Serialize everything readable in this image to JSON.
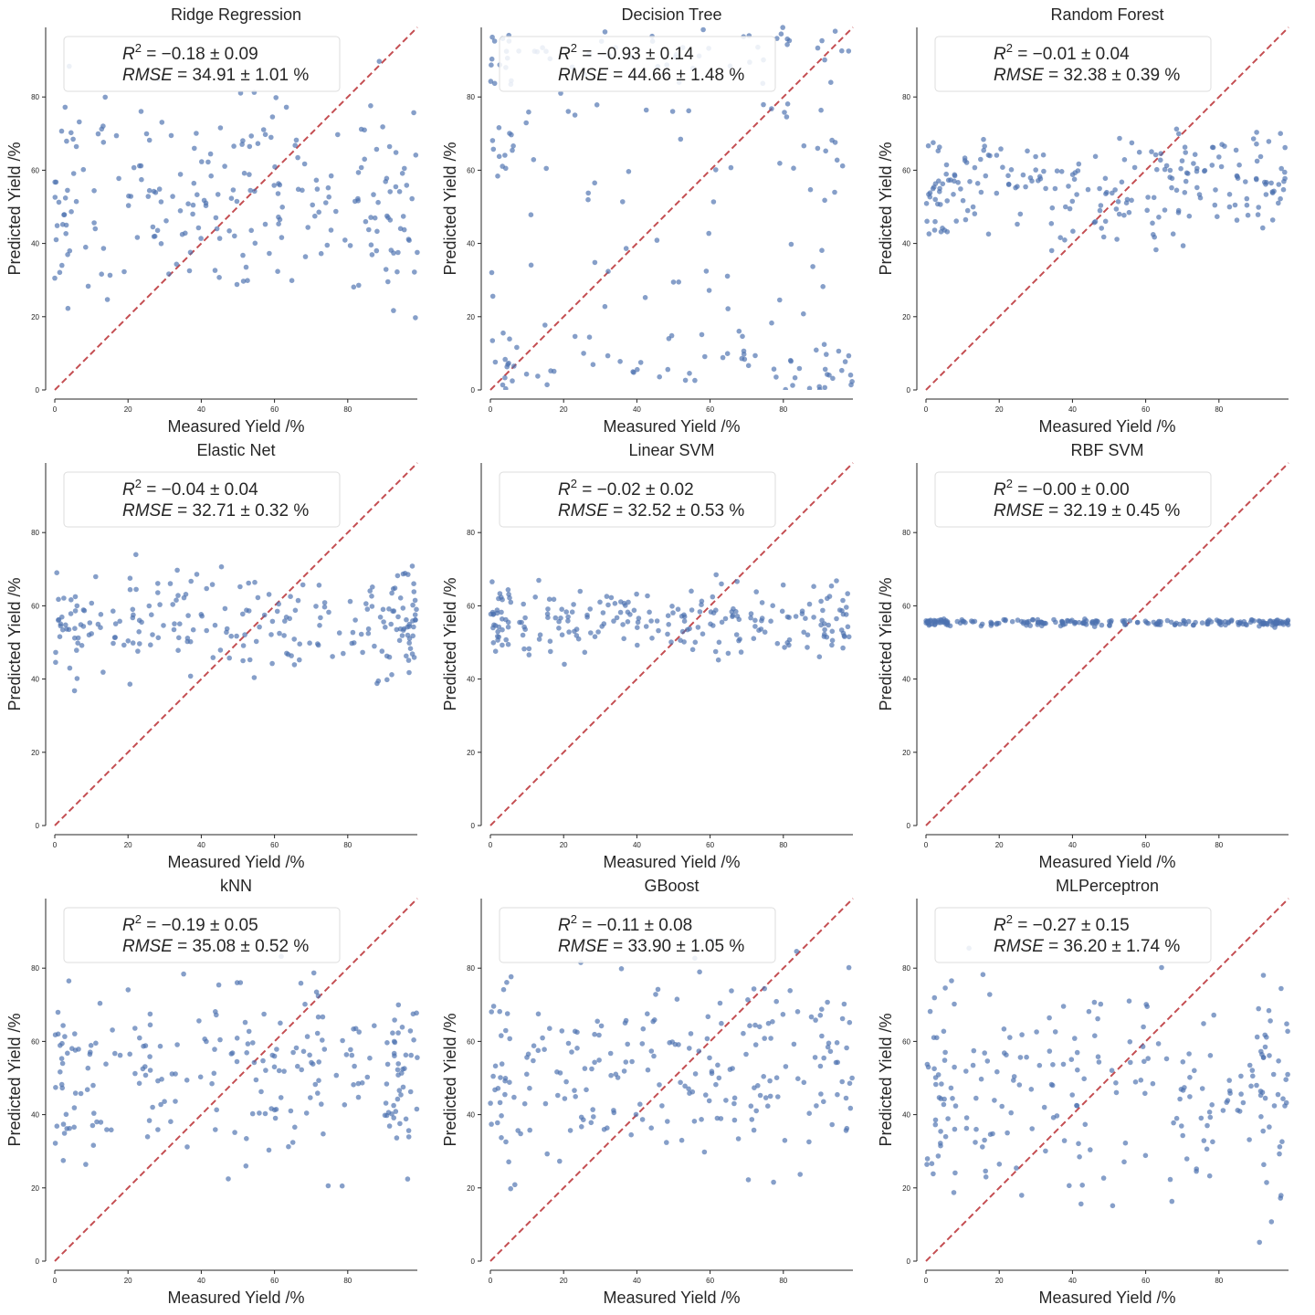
{
  "figure": {
    "colors": {
      "points": "#4c72b0",
      "diagonal": "#c44e52",
      "axes": "#262626"
    },
    "xlabel": "Measured Yield /%",
    "ylabel": "Predicted Yield /%"
  },
  "chart_data": [
    {
      "type": "scatter",
      "title": "Ridge Regression",
      "r2": "−0.18 ± 0.09",
      "rmse": "34.91 ± 1.01",
      "xlim": [
        0,
        99
      ],
      "ylim": [
        0,
        99
      ],
      "ticks": [
        0,
        20,
        40,
        60,
        80
      ],
      "grid": false,
      "legend": "top-left",
      "diagonal": true,
      "pattern": "spread",
      "center": 52,
      "spread": 14,
      "seed": 11
    },
    {
      "type": "scatter",
      "title": "Decision Tree",
      "r2": "−0.93 ± 0.14",
      "rmse": "44.66 ± 1.48",
      "xlim": [
        0,
        99
      ],
      "ylim": [
        0,
        99
      ],
      "ticks": [
        0,
        20,
        40,
        60,
        80
      ],
      "grid": false,
      "legend": "top-left",
      "diagonal": true,
      "pattern": "uniform",
      "center": 50,
      "spread": 50,
      "seed": 23
    },
    {
      "type": "scatter",
      "title": "Random Forest",
      "r2": "−0.01 ± 0.04",
      "rmse": "32.38 ± 0.39",
      "xlim": [
        0,
        99
      ],
      "ylim": [
        0,
        99
      ],
      "ticks": [
        0,
        20,
        40,
        60,
        80
      ],
      "grid": false,
      "legend": "top-left",
      "diagonal": true,
      "pattern": "spread",
      "center": 56,
      "spread": 7,
      "seed": 37
    },
    {
      "type": "scatter",
      "title": "Elastic Net",
      "r2": "−0.04 ± 0.04",
      "rmse": "32.71 ± 0.32",
      "xlim": [
        0,
        99
      ],
      "ylim": [
        0,
        99
      ],
      "ticks": [
        0,
        20,
        40,
        60,
        80
      ],
      "grid": false,
      "legend": "top-left",
      "diagonal": true,
      "pattern": "spread",
      "center": 55,
      "spread": 7,
      "seed": 41
    },
    {
      "type": "scatter",
      "title": "Linear SVM",
      "r2": "−0.02 ± 0.02",
      "rmse": "32.52 ± 0.53",
      "xlim": [
        0,
        99
      ],
      "ylim": [
        0,
        99
      ],
      "ticks": [
        0,
        20,
        40,
        60,
        80
      ],
      "grid": false,
      "legend": "top-left",
      "diagonal": true,
      "pattern": "spread",
      "center": 56,
      "spread": 5,
      "seed": 53
    },
    {
      "type": "scatter",
      "title": "RBF SVM",
      "r2": "−0.00 ± 0.00",
      "rmse": "32.19 ± 0.45",
      "xlim": [
        0,
        99
      ],
      "ylim": [
        0,
        99
      ],
      "ticks": [
        0,
        20,
        40,
        60,
        80
      ],
      "grid": false,
      "legend": "top-left",
      "diagonal": true,
      "pattern": "flat",
      "center": 55.4,
      "spread": 0.45,
      "seed": 61
    },
    {
      "type": "scatter",
      "title": "kNN",
      "r2": "−0.19 ± 0.05",
      "rmse": "35.08 ± 0.52",
      "xlim": [
        0,
        99
      ],
      "ylim": [
        0,
        99
      ],
      "ticks": [
        0,
        20,
        40,
        60,
        80
      ],
      "grid": false,
      "legend": "top-left",
      "diagonal": true,
      "pattern": "spread",
      "center": 50,
      "spread": 13,
      "seed": 71
    },
    {
      "type": "scatter",
      "title": "GBoost",
      "r2": "−0.11 ± 0.08",
      "rmse": "33.90 ± 1.05",
      "xlim": [
        0,
        99
      ],
      "ylim": [
        0,
        99
      ],
      "ticks": [
        0,
        20,
        40,
        60,
        80
      ],
      "grid": false,
      "legend": "top-left",
      "diagonal": true,
      "pattern": "spread",
      "center": 52,
      "spread": 13,
      "seed": 83
    },
    {
      "type": "scatter",
      "title": "MLPerceptron",
      "r2": "−0.27 ± 0.15",
      "rmse": "36.20 ± 1.74",
      "xlim": [
        0,
        99
      ],
      "ylim": [
        0,
        99
      ],
      "ticks": [
        0,
        20,
        40,
        60,
        80
      ],
      "grid": false,
      "legend": "top-left",
      "diagonal": true,
      "pattern": "spread",
      "center": 46,
      "spread": 14,
      "seed": 97
    }
  ]
}
